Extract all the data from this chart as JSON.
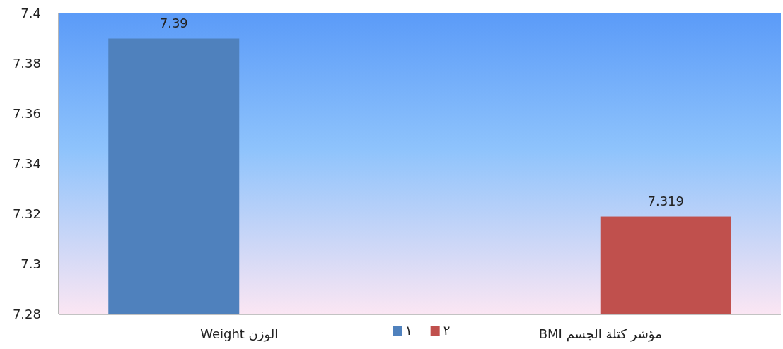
{
  "chart_data": {
    "type": "bar",
    "categories": [
      "الوزن Weight",
      "مؤشر كتلة الجسم  BMI"
    ],
    "series": [
      {
        "name": "١",
        "color": "#4f81bd",
        "values": [
          7.39,
          null
        ]
      },
      {
        "name": "٢",
        "color": "#c0504d",
        "values": [
          null,
          7.319
        ]
      }
    ],
    "ylim": [
      7.28,
      7.4
    ],
    "yticks": [
      7.28,
      7.3,
      7.32,
      7.34,
      7.36,
      7.38,
      7.4
    ],
    "data_labels": true,
    "legend": "bottom",
    "grid": false
  }
}
